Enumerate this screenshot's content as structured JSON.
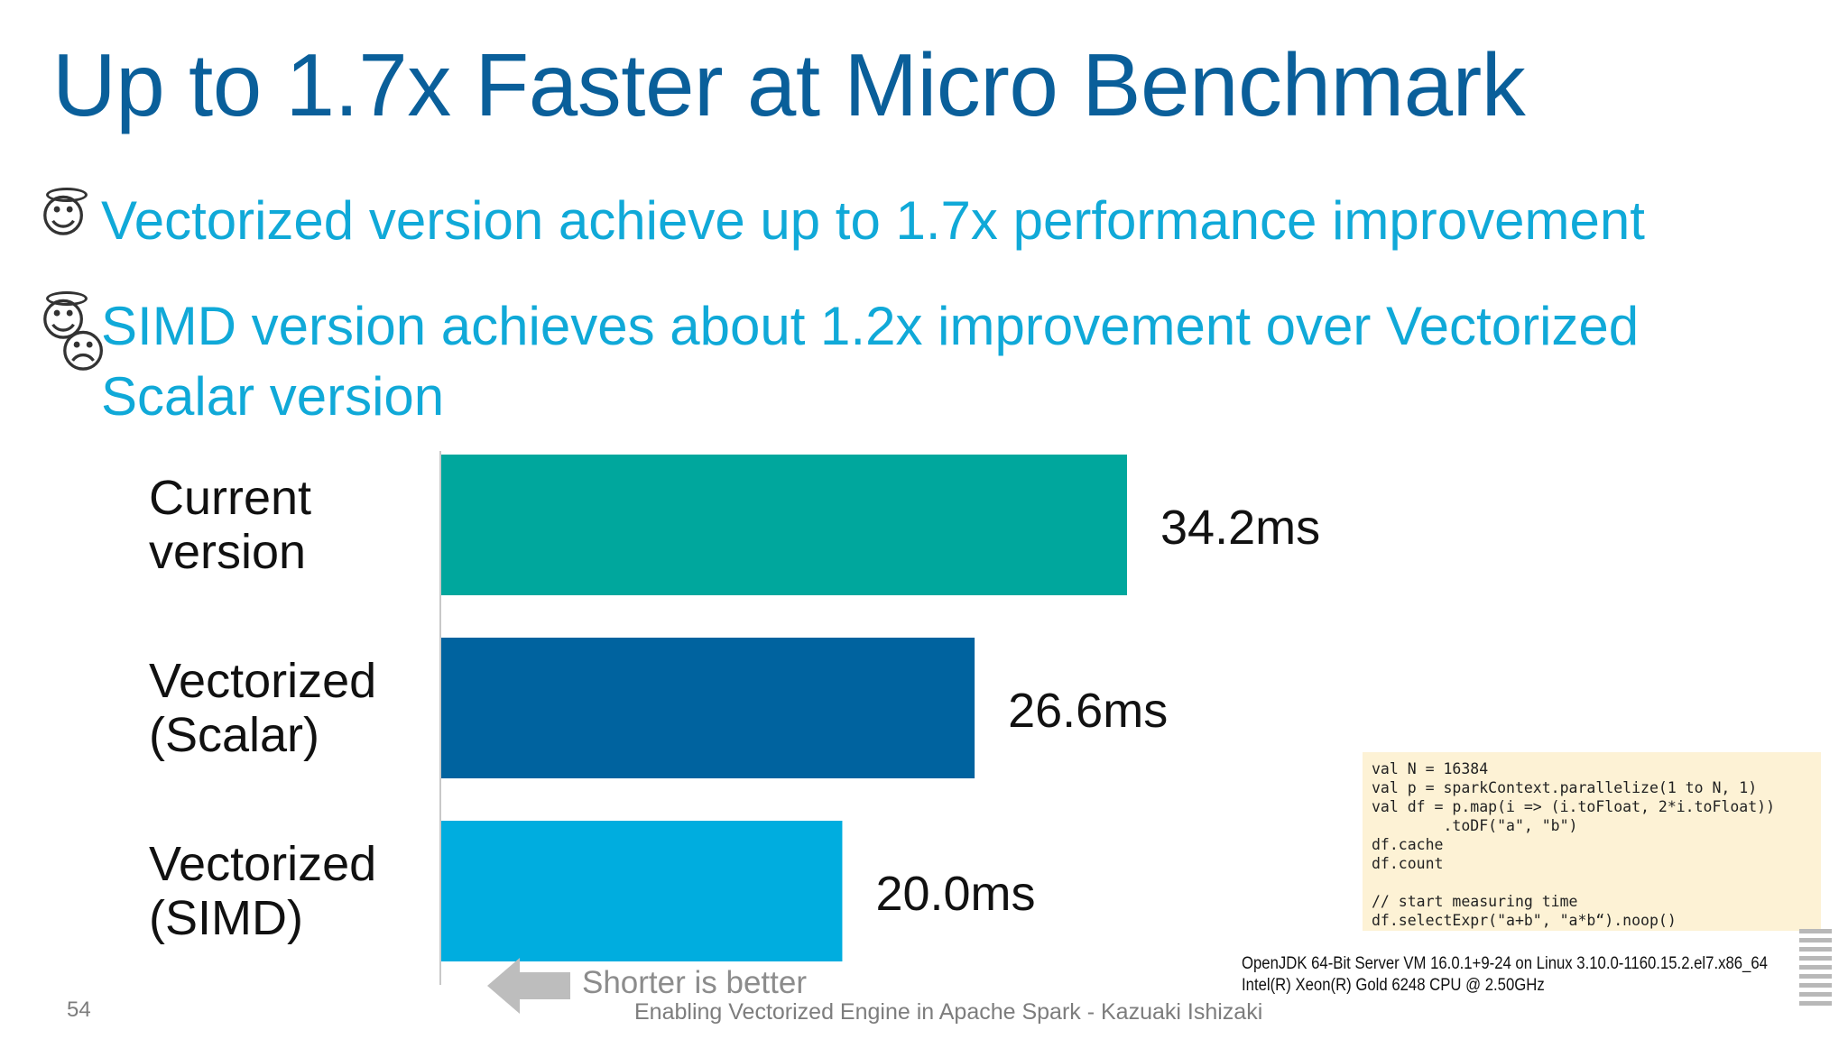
{
  "title": "Up to 1.7x Faster at Micro Benchmark",
  "bullets": [
    "Vectorized version achieve up to 1.7x performance improvement",
    "SIMD version achieves about 1.2x improvement over Vectorized",
    "Scalar version"
  ],
  "icons": {
    "bullet1": "smiling-face-with-halo-icon",
    "bullet2": "smiling-face-with-halo-icon",
    "bullet2_overlay": "worried-face-icon"
  },
  "chart_data": {
    "type": "bar",
    "orientation": "horizontal",
    "categories": [
      "Current\nversion",
      "Vectorized\n(Scalar)",
      "Vectorized\n(SIMD)"
    ],
    "values": [
      34.2,
      26.6,
      20.0
    ],
    "value_labels": [
      "34.2ms",
      "26.6ms",
      "20.0ms"
    ],
    "unit": "ms",
    "colors": [
      "#00a79d",
      "#00639f",
      "#00addf"
    ],
    "xlim": [
      0,
      40
    ],
    "note": "Shorter is better"
  },
  "code": "val N = 16384\nval p = sparkContext.parallelize(1 to N, 1)\nval df = p.map(i => (i.toFloat, 2*i.toFloat))\n        .toDF(\"a\", \"b\")\ndf.cache\ndf.count\n\n// start measuring time\ndf.selectExpr(\"a+b\", \"a*b“).noop()",
  "environment": [
    "OpenJDK 64-Bit Server VM 16.0.1+9-24 on Linux 3.10.0-1160.15.2.el7.x86_64",
    "Intel(R) Xeon(R) Gold 6248 CPU @ 2.50GHz"
  ],
  "footer": "Enabling Vectorized Engine in Apache Spark - Kazuaki Ishizaki",
  "page_number": "54",
  "logo": "IBM"
}
